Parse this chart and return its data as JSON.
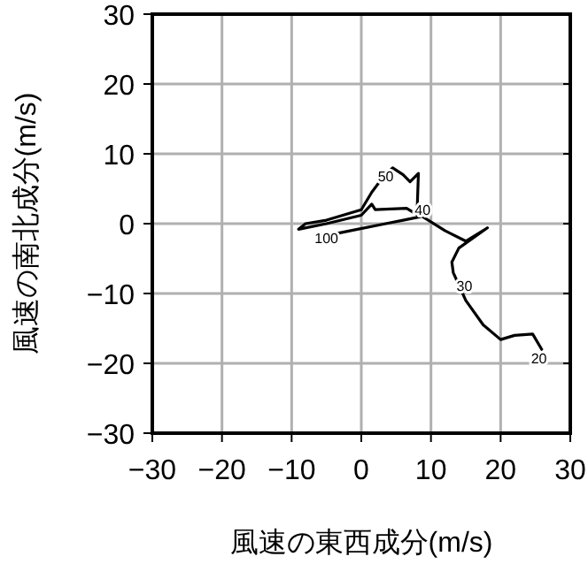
{
  "chart_data": {
    "type": "line",
    "xlabel": "風速の東西成分(m/s)",
    "ylabel": "風速の南北成分(m/s)",
    "x": [
      25.9,
      24.6,
      22.0,
      20.0,
      17.5,
      15.0,
      13.2,
      13.0,
      14.0,
      18.1,
      15.0,
      12.0,
      8.0,
      8.2,
      7.0,
      6.0,
      4.5,
      3.0,
      1.5,
      0.0,
      -5.0,
      -8.0,
      -9.0,
      -5.0,
      0.0,
      1.5,
      2.0,
      6.5,
      8.5,
      6.0,
      3.5,
      -1.5,
      -4.0
    ],
    "values": [
      -18.0,
      -15.8,
      -16.0,
      -16.6,
      -14.5,
      -11.0,
      -7.0,
      -5.5,
      -3.5,
      -0.6,
      -2.5,
      -1.0,
      1.5,
      7.2,
      6.0,
      7.0,
      8.0,
      6.5,
      4.5,
      2.0,
      0.5,
      0.0,
      -0.8,
      0.0,
      1.2,
      2.8,
      2.0,
      2.2,
      1.0,
      0.5,
      0.0,
      -1.0,
      -1.5
    ],
    "color": "#000000",
    "xlim": [
      -30,
      30
    ],
    "ylim": [
      -30,
      30
    ],
    "xticks": [
      -30,
      -20,
      -10,
      0,
      10,
      20,
      30
    ],
    "yticks": [
      -30,
      -20,
      -10,
      0,
      10,
      20,
      30
    ],
    "grid": true,
    "annotations": [
      {
        "text": "20",
        "x": 25.5,
        "y": -19.2
      },
      {
        "text": "30",
        "x": 14.8,
        "y": -8.8
      },
      {
        "text": "40",
        "x": 8.8,
        "y": 2.0
      },
      {
        "text": "50",
        "x": 3.5,
        "y": 6.8
      },
      {
        "text": "100",
        "x": -5.0,
        "y": -2.0
      }
    ]
  }
}
